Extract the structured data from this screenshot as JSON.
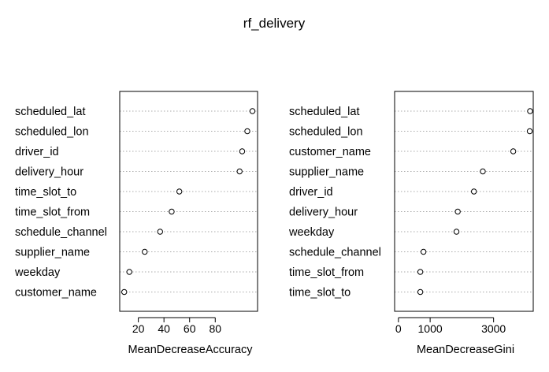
{
  "title": "rf_delivery",
  "chart_data": [
    {
      "type": "scatter",
      "panel": "left",
      "xlabel": "MeanDecreaseAccuracy",
      "xlim": [
        5.5,
        113
      ],
      "xticks": [
        20,
        40,
        60,
        80
      ],
      "categories": [
        "scheduled_lat",
        "scheduled_lon",
        "driver_id",
        "delivery_hour",
        "time_slot_to",
        "time_slot_from",
        "schedule_channel",
        "supplier_name",
        "weekday",
        "customer_name"
      ],
      "values": [
        109,
        105,
        101,
        99,
        52,
        46,
        37,
        25,
        13,
        9
      ],
      "grid": true
    },
    {
      "type": "scatter",
      "panel": "right",
      "xlabel": "MeanDecreaseGini",
      "xlim": [
        -120,
        4250
      ],
      "xticks": [
        0,
        1000,
        3000
      ],
      "categories": [
        "scheduled_lat",
        "scheduled_lon",
        "customer_name",
        "supplier_name",
        "driver_id",
        "delivery_hour",
        "weekday",
        "schedule_channel",
        "time_slot_from",
        "time_slot_to"
      ],
      "values": [
        4150,
        4140,
        3620,
        2660,
        2380,
        1870,
        1830,
        790,
        690,
        690
      ],
      "grid": true
    }
  ]
}
